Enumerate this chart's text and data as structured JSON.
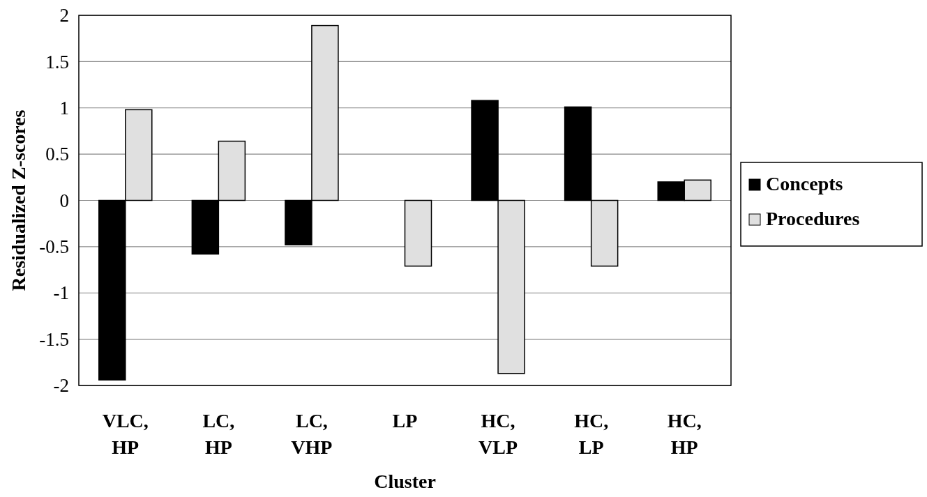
{
  "chart_data": {
    "type": "bar",
    "xlabel": "Cluster",
    "ylabel": "Residualized Z-scores",
    "categories": [
      "VLC, HP",
      "LC, HP",
      "LC, VHP",
      "LP",
      "HC, VLP",
      "HC, LP",
      "HC, HP"
    ],
    "series": [
      {
        "name": "Concepts",
        "color": "#000000",
        "values": [
          -1.94,
          -0.58,
          -0.48,
          0,
          1.08,
          1.01,
          0.2
        ]
      },
      {
        "name": "Procedures",
        "color": "#e0e0e0",
        "values": [
          0.98,
          0.64,
          1.89,
          -0.71,
          -1.87,
          -0.71,
          0.22
        ]
      }
    ],
    "ylim": [
      -2,
      2
    ],
    "yticks": [
      -2,
      -1.5,
      -1,
      -0.5,
      0,
      0.5,
      1,
      1.5,
      2
    ],
    "grid": "y",
    "legend": "right"
  }
}
